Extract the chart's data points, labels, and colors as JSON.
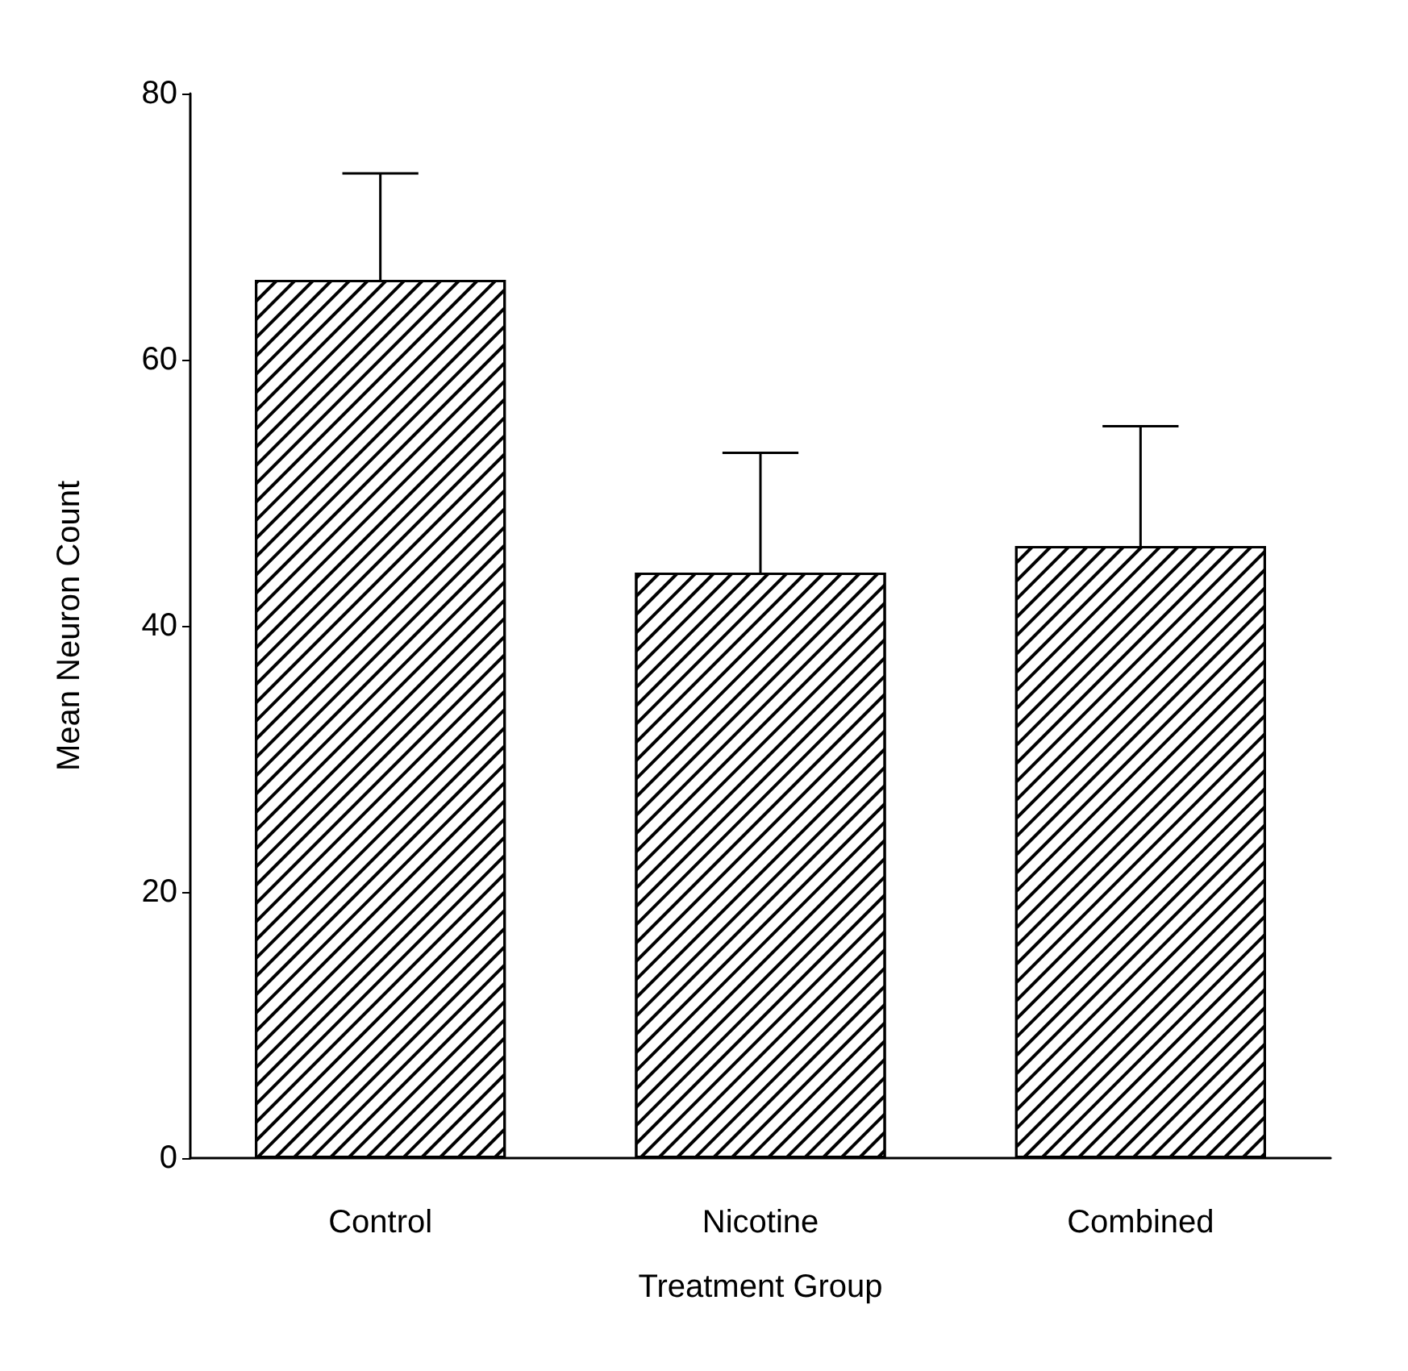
{
  "chart_data": {
    "type": "bar",
    "xlabel": "Treatment Group",
    "ylabel": "Mean Neuron Count",
    "categories": [
      "Control",
      "Nicotine",
      "Combined"
    ],
    "values": [
      66,
      44,
      46
    ],
    "color": "#ffffff",
    "errors": [
      [
        66,
        74
      ],
      [
        44,
        53
      ],
      [
        46,
        55
      ]
    ],
    "ylim": [
      0,
      80
    ],
    "yticks": [
      0,
      20,
      40,
      60,
      80
    ],
    "grid": false
  }
}
